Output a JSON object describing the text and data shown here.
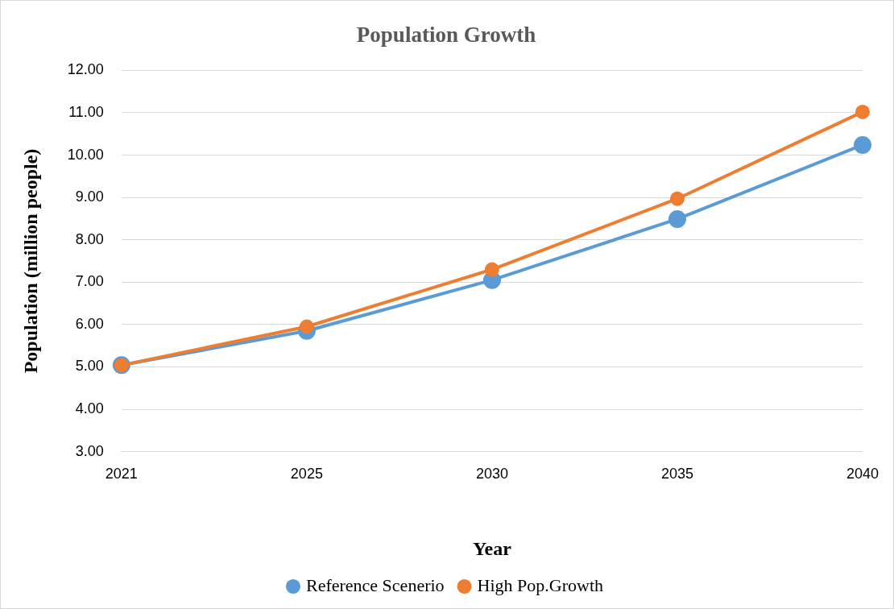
{
  "chart_data": {
    "type": "line",
    "title": "Population Growth",
    "xlabel": "Year",
    "ylabel": "Population (million people)",
    "categories": [
      "2021",
      "2025",
      "2030",
      "2035",
      "2040"
    ],
    "series": [
      {
        "name": "Reference Scenerio",
        "color": "#5b9bd5",
        "values": [
          5.04,
          5.85,
          7.05,
          8.49,
          10.24
        ]
      },
      {
        "name": "High Pop.Growth",
        "color": "#ed7d31",
        "values": [
          5.04,
          5.95,
          7.3,
          8.97,
          11.02
        ]
      }
    ],
    "ylim": [
      3,
      12
    ],
    "yticks": [
      {
        "value": 3,
        "label": "3.00"
      },
      {
        "value": 4,
        "label": "4.00"
      },
      {
        "value": 5,
        "label": "5.00"
      },
      {
        "value": 6,
        "label": "6.00"
      },
      {
        "value": 7,
        "label": "7.00"
      },
      {
        "value": 8,
        "label": "8.00"
      },
      {
        "value": 9,
        "label": "9.00"
      },
      {
        "value": 10,
        "label": "10.00"
      },
      {
        "value": 11,
        "label": "11.00"
      },
      {
        "value": 12,
        "label": "12.00"
      }
    ],
    "grid": "y",
    "legend": "bottom",
    "marker": "circle",
    "line_style": "solid"
  }
}
